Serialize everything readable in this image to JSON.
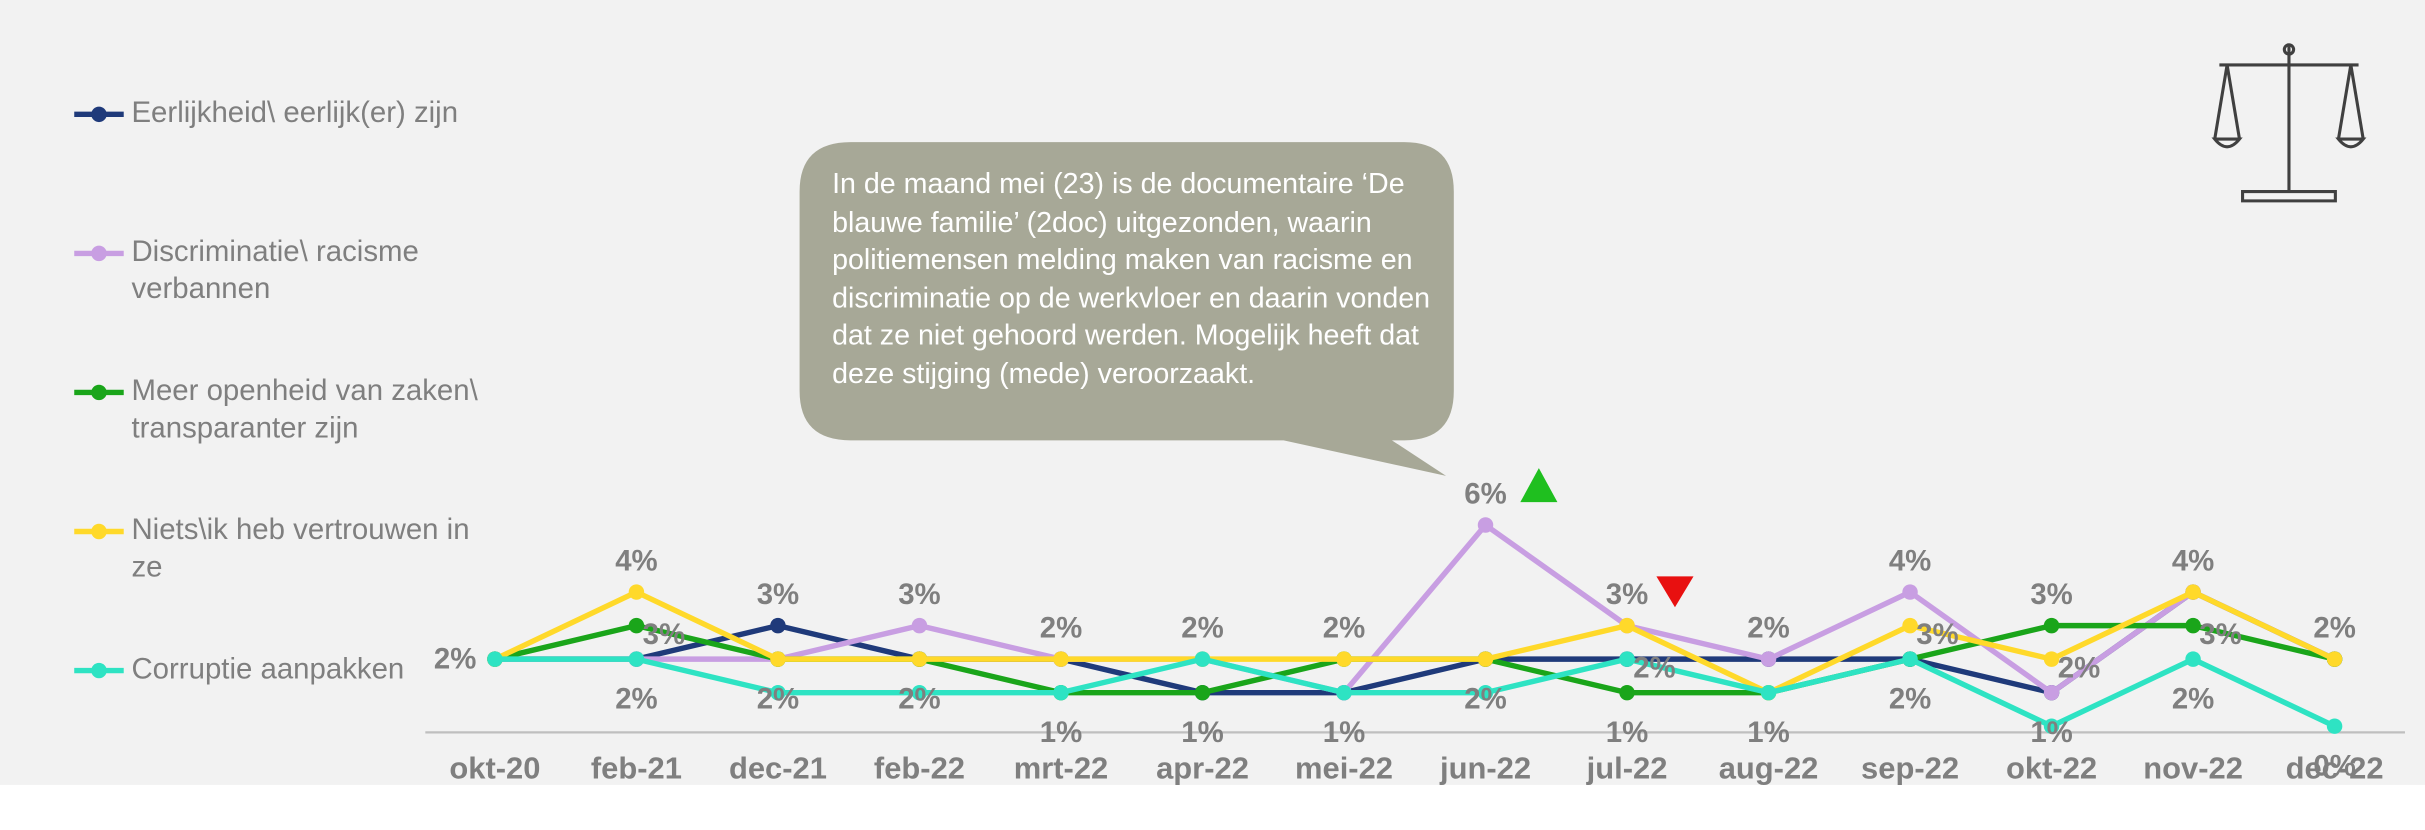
{
  "chart_data": {
    "type": "line",
    "annotation": "In de maand mei (23) is de documentaire ‘De blauwe familie’ (2doc) uitgezonden, waarin politiemensen melding maken van racisme en discriminatie op de werkvloer en daarin vonden dat ze niet gehoord werden. Mogelijk heeft dat deze stijging (mede) veroorzaakt.",
    "categories": [
      "okt-20",
      "feb-21",
      "dec-21",
      "feb-22",
      "mrt-22",
      "apr-22",
      "mei-22",
      "jun-22",
      "jul-22",
      "aug-22",
      "sep-22",
      "okt-22",
      "nov-22",
      "dec-22"
    ],
    "series": [
      {
        "name": "Eerlijkheid\\ eerlijk(er) zijn",
        "color": "#1f3a7a",
        "values": [
          2,
          2,
          3,
          2,
          2,
          1,
          1,
          2,
          2,
          2,
          2,
          1,
          4,
          2
        ],
        "value_labels": [
          "2%",
          null,
          "3%",
          null,
          null,
          null,
          "1%",
          null,
          null,
          null,
          null,
          null,
          null,
          null
        ]
      },
      {
        "name": "Discriminatie\\ racisme verbannen",
        "color": "#c89ee2",
        "values": [
          2,
          2,
          2,
          3,
          2,
          2,
          1,
          6,
          3,
          2,
          4,
          1,
          4,
          2
        ],
        "value_labels": [
          null,
          null,
          null,
          "3%",
          "2%",
          null,
          null,
          "6%",
          null,
          "2%",
          "4%",
          "1%",
          null,
          null
        ]
      },
      {
        "name": "Meer openheid van zaken\\ transparanter zijn",
        "color": "#1aa51a",
        "values": [
          2,
          3,
          2,
          2,
          1,
          1,
          2,
          2,
          1,
          1,
          2,
          3,
          3,
          2
        ],
        "value_labels": [
          null,
          "3%",
          "2%",
          "2%",
          "1%",
          "1%",
          "2%",
          null,
          "1%",
          "1%",
          null,
          "3%",
          "3%",
          null
        ]
      },
      {
        "name": "Niets\\ik heb vertrouwen in ze",
        "color": "#ffd92a",
        "values": [
          2,
          4,
          2,
          2,
          2,
          2,
          2,
          2,
          3,
          1,
          3,
          2,
          4,
          2
        ],
        "value_labels": [
          null,
          "4%",
          null,
          null,
          null,
          null,
          null,
          "2%",
          "3%",
          null,
          "3%",
          "2%",
          "4%",
          "2%"
        ]
      },
      {
        "name": "Corruptie aanpakken",
        "color": "#2ee3c3",
        "values": [
          2,
          2,
          1,
          1,
          1,
          2,
          1,
          1,
          2,
          1,
          2,
          0,
          2,
          0
        ],
        "value_labels": [
          null,
          "2%",
          null,
          null,
          null,
          "2%",
          null,
          null,
          "2%",
          null,
          "2%",
          null,
          "2%",
          "0%"
        ]
      }
    ]
  }
}
